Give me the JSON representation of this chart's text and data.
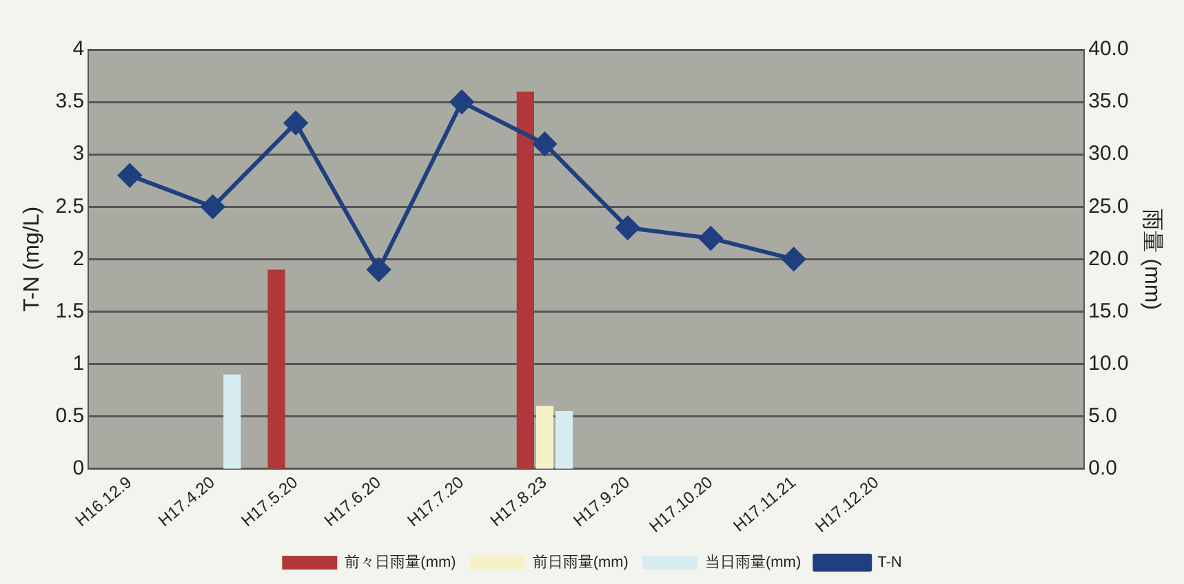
{
  "chart_data": {
    "type": "bar",
    "ylabel": "T-N (mg/L)",
    "y2label": "雨量 (mm)",
    "categories": [
      "H16.12.9",
      "H17.4.20",
      "H17.5.20",
      "H17.6.20",
      "H17.7.20",
      "H17.8.23",
      "H17.9.20",
      "H17.10.20",
      "H17.11.21",
      "H17.12.20",
      null,
      null
    ],
    "series": [
      {
        "name": "前々日雨量(mm)",
        "color": "#b0383a",
        "axis": "y2",
        "values": [
          null,
          null,
          19.0,
          null,
          null,
          36.0,
          null,
          null,
          null,
          null,
          null,
          null
        ]
      },
      {
        "name": "前日雨量(mm)",
        "color": "#f5f2c8",
        "axis": "y2",
        "values": [
          null,
          null,
          null,
          null,
          null,
          6.0,
          null,
          null,
          null,
          null,
          null,
          null
        ]
      },
      {
        "name": "当日雨量(mm)",
        "color": "#d6ecf0",
        "axis": "y2",
        "values": [
          null,
          9.0,
          null,
          null,
          null,
          5.5,
          null,
          null,
          null,
          null,
          null,
          null
        ]
      },
      {
        "name": "T-N",
        "type": "line",
        "color": "#1f3f7f",
        "values": [
          2.8,
          2.5,
          3.3,
          1.9,
          3.5,
          3.1,
          2.3,
          2.2,
          2.0,
          null,
          null,
          null
        ]
      }
    ],
    "ylim": [
      0,
      4
    ],
    "yticks": [
      0,
      0.5,
      1,
      1.5,
      2,
      2.5,
      3,
      3.5,
      4
    ],
    "y2lim": [
      0,
      40
    ],
    "y2ticks": [
      {
        "value": 0,
        "label": "0.0"
      },
      {
        "value": 5,
        "label": "5.0"
      },
      {
        "value": 10,
        "label": "10.0"
      },
      {
        "value": 15,
        "label": "15.0"
      },
      {
        "value": 20,
        "label": "20.0"
      },
      {
        "value": 25,
        "label": "25.0"
      },
      {
        "value": 30,
        "label": "30.0"
      },
      {
        "value": 35,
        "label": "35.0"
      },
      {
        "value": 40,
        "label": "40.0"
      }
    ],
    "grid": "y",
    "legend": "bottom",
    "marker": "diamond"
  }
}
